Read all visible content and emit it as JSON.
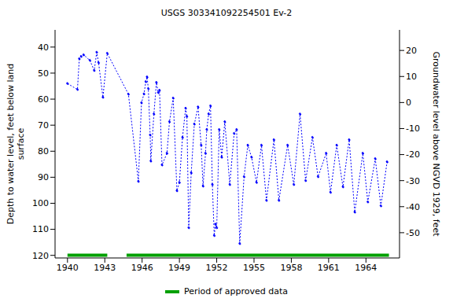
{
  "chart_data": {
    "type": "line",
    "title": "USGS 303341092254501 Ev-2",
    "y_label": "Depth to water level, feet below land surface",
    "y2_label": "Groundwater level above NGVD 1929, feet",
    "x": [
      1940.0,
      1940.8,
      1940.95,
      1941.1,
      1941.3,
      1941.8,
      1942.15,
      1942.35,
      1942.5,
      1942.85,
      1943.2,
      1944.9,
      1945.7,
      1945.95,
      1946.15,
      1946.3,
      1946.4,
      1946.5,
      1946.65,
      1946.7,
      1946.95,
      1947.15,
      1947.3,
      1947.4,
      1947.6,
      1948.0,
      1948.2,
      1948.5,
      1948.8,
      1949.0,
      1949.25,
      1949.5,
      1949.6,
      1949.75,
      1949.95,
      1950.2,
      1950.5,
      1950.75,
      1950.9,
      1951.1,
      1951.2,
      1951.35,
      1951.5,
      1951.65,
      1951.8,
      1951.9,
      1952.0,
      1952.2,
      1952.4,
      1952.65,
      1953.05,
      1953.4,
      1953.6,
      1953.85,
      1954.2,
      1954.5,
      1954.8,
      1955.2,
      1955.6,
      1956.0,
      1956.6,
      1957.0,
      1957.7,
      1958.2,
      1958.7,
      1959.15,
      1959.7,
      1960.15,
      1960.8,
      1961.15,
      1961.65,
      1962.15,
      1962.65,
      1963.1,
      1963.75,
      1964.15,
      1964.75,
      1965.2,
      1965.7
    ],
    "series": [
      {
        "name": "Depth to water level",
        "color": "#0000ff",
        "marker": "circle",
        "line_style": "dotted",
        "values": [
          54,
          56.3,
          44.5,
          43.6,
          43,
          45.1,
          49,
          42,
          46,
          59.3,
          42.4,
          58.1,
          91.6,
          61.4,
          58,
          53.3,
          51.5,
          56,
          73.8,
          83.8,
          65.7,
          53.6,
          57.5,
          56.6,
          85.3,
          80.8,
          68.7,
          59.6,
          95.2,
          92,
          74.7,
          63.5,
          66.6,
          109.4,
          88.3,
          69.6,
          63,
          77.7,
          93.4,
          80.8,
          71.7,
          65.7,
          62.6,
          92.8,
          112.4,
          108,
          109.4,
          71.7,
          82.3,
          68.7,
          92.8,
          73.2,
          71.7,
          115.5,
          89.8,
          77.7,
          82.3,
          92,
          77.7,
          98.9,
          75.6,
          98.9,
          77.7,
          92.8,
          65.7,
          91.3,
          74.7,
          89.8,
          80.8,
          95.8,
          77.7,
          93.7,
          75.6,
          103.4,
          80.8,
          99.5,
          82.9,
          101,
          84.1
        ]
      }
    ],
    "xlim": [
      1939,
      1966.7
    ],
    "xticks": [
      1940,
      1943,
      1946,
      1949,
      1952,
      1955,
      1958,
      1961,
      1964
    ],
    "ylim": [
      33.4,
      121
    ],
    "yticks": [
      40,
      50,
      60,
      70,
      80,
      90,
      100,
      110,
      120
    ],
    "y2lim": [
      -59.7,
      27.9
    ],
    "y2ticks": [
      -50,
      -40,
      -30,
      -20,
      -10,
      0,
      10,
      20
    ],
    "approved_periods": {
      "name": "Period of approved data",
      "color": "#00a000",
      "ranges": [
        [
          1940,
          1943.2
        ],
        [
          1944.75,
          1965.85
        ]
      ]
    },
    "legend": "bottom"
  }
}
